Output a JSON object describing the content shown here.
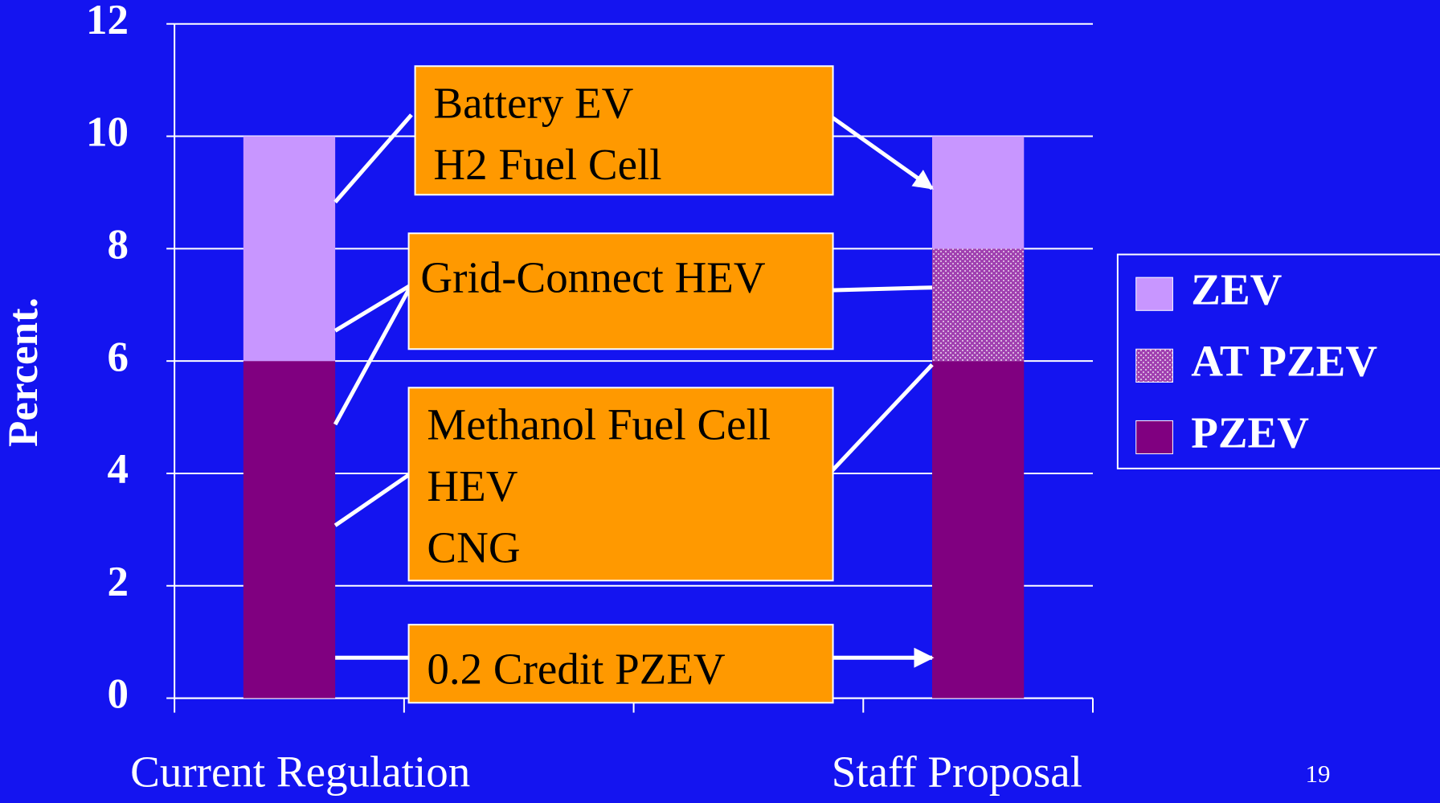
{
  "chart_data": {
    "type": "stacked-bar",
    "y_label": "Percent.",
    "categories": [
      "Current Regulation",
      null,
      null,
      "Staff Proposal"
    ],
    "series": [
      {
        "name": "PZEV",
        "color": "#800080",
        "values": [
          6,
          null,
          null,
          6
        ]
      },
      {
        "name": "AT PZEV",
        "color": "#a040b0",
        "pattern": "dots",
        "values": [
          0,
          null,
          null,
          2
        ]
      },
      {
        "name": "ZEV",
        "color": "#c896ff",
        "values": [
          4,
          null,
          null,
          2
        ]
      }
    ],
    "ylim": [
      0,
      12
    ],
    "yticks": [
      0,
      2,
      4,
      6,
      8,
      10,
      12
    ],
    "grid": true,
    "annotations": [
      [
        "Battery EV",
        "H2 Fuel Cell"
      ],
      [
        "Grid-Connect HEV"
      ],
      [
        "Methanol Fuel Cell",
        "HEV",
        "CNG"
      ],
      [
        "0.2 Credit PZEV"
      ]
    ],
    "page_number": "19"
  }
}
